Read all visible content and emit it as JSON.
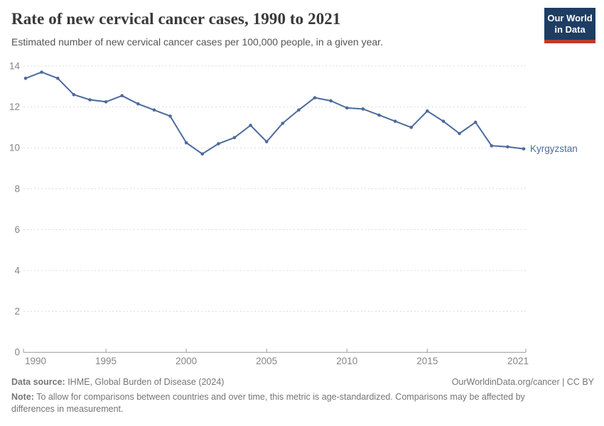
{
  "header": {
    "title": "Rate of new cervical cancer cases, 1990 to 2021",
    "subtitle": "Estimated number of new cervical cancer cases per 100,000 people, in a given year.",
    "logo": {
      "line1": "Our World",
      "line2": "in Data",
      "bg": "#1d3d63",
      "bar": "#c0392b"
    }
  },
  "chart_data": {
    "type": "line",
    "title": "Rate of new cervical cancer cases, 1990 to 2021",
    "x": [
      1990,
      1991,
      1992,
      1993,
      1994,
      1995,
      1996,
      1997,
      1998,
      1999,
      2000,
      2001,
      2002,
      2003,
      2004,
      2005,
      2006,
      2007,
      2008,
      2009,
      2010,
      2011,
      2012,
      2013,
      2014,
      2015,
      2016,
      2017,
      2018,
      2019,
      2020,
      2021
    ],
    "series": [
      {
        "name": "Kyrgyzstan",
        "color": "#4C6A9C",
        "values": [
          13.4,
          13.7,
          13.4,
          12.6,
          12.35,
          12.25,
          12.55,
          12.15,
          11.85,
          11.55,
          10.25,
          9.7,
          10.2,
          10.5,
          11.1,
          10.3,
          11.2,
          11.85,
          12.45,
          12.3,
          11.95,
          11.9,
          11.6,
          11.3,
          11.0,
          11.8,
          11.3,
          10.7,
          11.25,
          10.1,
          10.05,
          9.95
        ]
      }
    ],
    "ylim": [
      0,
      14
    ],
    "yticks": [
      0,
      2,
      4,
      6,
      8,
      10,
      12,
      14
    ],
    "xticks": [
      1990,
      1995,
      2000,
      2005,
      2010,
      2015,
      2021
    ],
    "grid": "horizontal-dashed",
    "legend_position": "line-end-label",
    "colors": {
      "gridline": "#dddddd",
      "axis": "#999999",
      "tick_label": "#858585"
    }
  },
  "footer": {
    "datasource_label": "Data source:",
    "datasource": " IHME, Global Burden of Disease (2024)",
    "link": "OurWorldinData.org/cancer | CC BY",
    "note_label": "Note:",
    "note": " To allow for comparisons between countries and over time, this metric is age-standardized. Comparisons may be affected by differences in measurement."
  }
}
